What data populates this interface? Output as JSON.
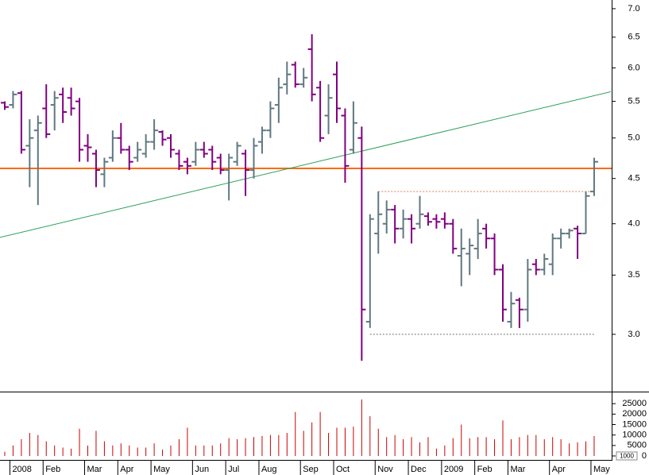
{
  "chart_data": [
    {
      "type": "ohlc",
      "log_scale": true,
      "up_color": "#607880",
      "down_color": "#800080",
      "categories": [
        null,
        "2008",
        null,
        null,
        null,
        "Feb",
        null,
        null,
        null,
        null,
        "Mar",
        null,
        null,
        null,
        "Apr",
        null,
        null,
        null,
        "May",
        null,
        null,
        null,
        null,
        "Jun",
        null,
        null,
        null,
        "Jul",
        null,
        null,
        null,
        "Aug",
        null,
        null,
        null,
        null,
        "Sep",
        null,
        null,
        null,
        "Oct",
        null,
        null,
        null,
        null,
        "Nov",
        null,
        null,
        null,
        "Dec",
        null,
        null,
        null,
        "2009",
        null,
        null,
        null,
        "Feb",
        null,
        null,
        null,
        "Mar",
        null,
        null,
        null,
        null,
        "Apr",
        null,
        null,
        null,
        null,
        "May"
      ],
      "open": [
        5.48,
        5.45,
        5.62,
        4.9,
        5.1,
        5.4,
        5.45,
        5.6,
        5.55,
        5.5,
        4.9,
        4.8,
        4.55,
        4.75,
        5.0,
        4.85,
        4.75,
        4.8,
        4.95,
        5.08,
        5.0,
        4.8,
        4.7,
        4.7,
        4.85,
        4.85,
        4.75,
        4.6,
        4.7,
        4.8,
        4.6,
        4.95,
        5.1,
        5.45,
        5.75,
        6.05,
        5.75,
        6.3,
        5.7,
        5.3,
        5.9,
        5.3,
        4.85,
        5.0,
        3.1,
        3.9,
        4.0,
        4.15,
        3.95,
        4.05,
        4.0,
        4.08,
        4.05,
        4.05,
        4.0,
        3.68,
        3.7,
        3.75,
        3.95,
        3.85,
        3.55,
        3.1,
        3.28,
        3.2,
        3.6,
        3.55,
        3.6,
        3.85,
        3.9,
        3.95,
        3.9,
        4.35
      ],
      "high": [
        5.5,
        5.65,
        5.65,
        5.25,
        5.3,
        5.75,
        5.65,
        5.7,
        5.7,
        5.55,
        5.05,
        4.85,
        4.75,
        5.1,
        5.2,
        4.9,
        4.95,
        5.05,
        5.25,
        5.1,
        5.05,
        4.85,
        4.75,
        4.95,
        4.95,
        4.9,
        4.8,
        4.8,
        4.95,
        4.85,
        5.0,
        5.15,
        5.5,
        5.85,
        6.1,
        6.1,
        6.0,
        6.55,
        5.8,
        5.75,
        6.1,
        5.4,
        5.5,
        5.15,
        4.1,
        4.35,
        4.25,
        4.2,
        4.15,
        4.1,
        4.3,
        4.12,
        4.1,
        4.12,
        4.05,
        3.95,
        3.85,
        4.05,
        4.0,
        3.9,
        3.6,
        3.35,
        3.3,
        3.65,
        3.65,
        3.7,
        3.9,
        3.95,
        3.95,
        3.98,
        4.35,
        4.75
      ],
      "low": [
        5.38,
        5.4,
        4.8,
        4.4,
        4.2,
        5.0,
        5.1,
        5.2,
        5.3,
        4.7,
        4.7,
        4.4,
        4.4,
        4.7,
        4.8,
        4.6,
        4.7,
        4.75,
        4.85,
        4.9,
        4.75,
        4.6,
        4.55,
        4.65,
        4.75,
        4.6,
        4.55,
        4.25,
        4.65,
        4.3,
        4.5,
        4.8,
        5.0,
        5.2,
        5.6,
        5.7,
        5.7,
        5.5,
        4.95,
        5.05,
        5.2,
        4.45,
        4.8,
        2.8,
        3.05,
        3.7,
        3.9,
        3.8,
        3.85,
        3.8,
        3.95,
        3.98,
        3.95,
        3.95,
        3.7,
        3.4,
        3.5,
        3.65,
        3.75,
        3.5,
        3.1,
        3.05,
        3.05,
        3.1,
        3.5,
        3.5,
        3.5,
        3.75,
        3.85,
        3.65,
        3.9,
        4.3
      ],
      "close": [
        5.42,
        5.6,
        4.85,
        5.0,
        5.2,
        5.05,
        5.55,
        5.35,
        5.4,
        4.85,
        4.88,
        4.6,
        4.7,
        5.0,
        4.85,
        4.7,
        4.85,
        4.95,
        5.1,
        4.98,
        4.85,
        4.65,
        4.65,
        4.85,
        4.8,
        4.7,
        4.6,
        4.75,
        4.9,
        4.6,
        4.9,
        5.1,
        5.4,
        5.7,
        5.9,
        5.75,
        5.85,
        5.6,
        5.0,
        5.55,
        5.4,
        4.65,
        5.2,
        3.2,
        4.05,
        4.1,
        4.15,
        3.95,
        4.05,
        3.95,
        4.1,
        4.02,
        4.02,
        4.0,
        3.75,
        3.75,
        3.78,
        3.9,
        3.85,
        3.55,
        3.2,
        3.25,
        3.2,
        3.55,
        3.55,
        3.65,
        3.85,
        3.9,
        3.93,
        3.9,
        4.3,
        4.7
      ],
      "ylim": [
        2.59,
        7.16
      ],
      "yticks": [
        {
          "value": 3,
          "label": "3.0"
        },
        {
          "value": 3.5,
          "label": "3.5"
        },
        {
          "value": 4,
          "label": "4.0"
        },
        {
          "value": 4.5,
          "label": "4.5"
        },
        {
          "value": 5,
          "label": "5.0"
        },
        {
          "value": 5.5,
          "label": "5.5"
        },
        {
          "value": 6,
          "label": "6.0"
        },
        {
          "value": 6.5,
          "label": "6.5"
        },
        {
          "value": 7,
          "label": "7.0"
        }
      ],
      "horizontal_lines": [
        {
          "value": 4.62,
          "color": "#ff6a13"
        }
      ],
      "trend_lines": [
        {
          "from": [
            -0.6,
            3.86
          ],
          "to": [
            73,
            5.64
          ],
          "color": "#2ca05a",
          "dashed": false
        },
        {
          "from": [
            45,
            4.35
          ],
          "to": [
            71,
            4.35
          ],
          "color": "#e08050",
          "dashed": true
        },
        {
          "from": [
            44,
            3.0
          ],
          "to": [
            71,
            3.0
          ],
          "color": "#707070",
          "dashed": true
        }
      ]
    },
    {
      "type": "volume",
      "color": "#cc0000",
      "values": [
        2000,
        5000,
        8000,
        11000,
        10000,
        7000,
        5000,
        4000,
        3500,
        13000,
        5000,
        12000,
        7000,
        5000,
        6000,
        5000,
        4000,
        4000,
        6000,
        3000,
        5000,
        8000,
        13500,
        5000,
        5000,
        5000,
        6000,
        8500,
        8000,
        8500,
        9000,
        9500,
        10000,
        10000,
        11000,
        21000,
        12000,
        16000,
        21000,
        11000,
        13500,
        13500,
        14000,
        27000,
        19000,
        13000,
        9000,
        10000,
        8000,
        9000,
        6500,
        9000,
        3500,
        5000,
        8500,
        15000,
        8500,
        9000,
        9000,
        8000,
        17000,
        8000,
        9000,
        10000,
        10000,
        8000,
        9000,
        8000,
        6000,
        6500,
        7000,
        9500
      ],
      "ylim": [
        0,
        30000
      ],
      "yticks": [
        0,
        5000,
        10000,
        15000,
        20000,
        25000
      ],
      "unit_label": "1000"
    }
  ]
}
